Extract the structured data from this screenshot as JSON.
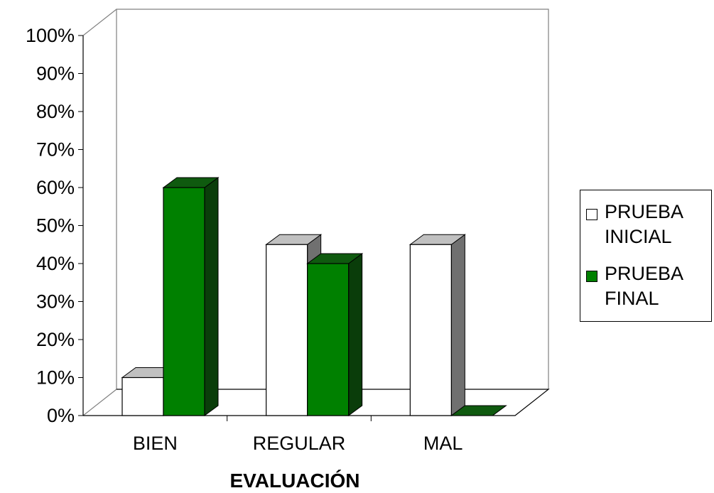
{
  "chart_data": {
    "type": "bar",
    "xlabel": "EVALUACIÓN",
    "ylabel": "",
    "categories": [
      "BIEN",
      "REGULAR",
      "MAL"
    ],
    "yticks": [
      "0%",
      "10%",
      "20%",
      "30%",
      "40%",
      "50%",
      "60%",
      "70%",
      "80%",
      "90%",
      "100%"
    ],
    "ylim": [
      0,
      100
    ],
    "series": [
      {
        "name": "PRUEBA INICIAL",
        "values": [
          10,
          45,
          45
        ],
        "color": "#ffffff",
        "side_color": "#707070",
        "top_color": "#c0c0c0"
      },
      {
        "name": "PRUEBA FINAL",
        "values": [
          60,
          40,
          0
        ],
        "color": "#008000",
        "side_color": "#0a3d0a",
        "top_color": "#0f5a0f"
      }
    ],
    "legend": {
      "position": "right",
      "items": [
        {
          "line1": "PRUEBA",
          "line2": "INICIAL"
        },
        {
          "line1": "PRUEBA",
          "line2": "FINAL"
        }
      ]
    },
    "grid": false,
    "style": "3d"
  }
}
